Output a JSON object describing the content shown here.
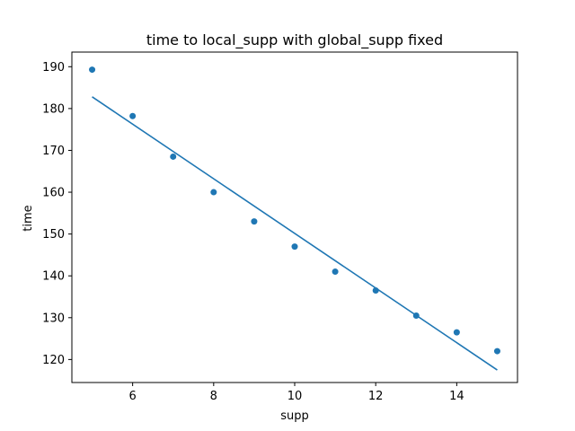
{
  "chart_data": {
    "type": "scatter",
    "title": "time to local_supp with global_supp fixed",
    "xlabel": "supp",
    "ylabel": "time",
    "xlim": [
      4.5,
      15.5
    ],
    "ylim": [
      114.5,
      193.5
    ],
    "xticks": [
      6,
      8,
      10,
      12,
      14
    ],
    "yticks": [
      120,
      130,
      140,
      150,
      160,
      170,
      180,
      190
    ],
    "grid": false,
    "colors": {
      "series": "#1f77b4"
    },
    "series": [
      {
        "kind": "scatter",
        "x": [
          5,
          6,
          7,
          8,
          9,
          10,
          11,
          12,
          13,
          14,
          15
        ],
        "y": [
          189.3,
          178.2,
          168.5,
          160.0,
          153.0,
          147.0,
          141.0,
          136.5,
          130.5,
          126.5,
          122.0
        ]
      },
      {
        "kind": "line",
        "x": [
          5,
          15
        ],
        "y": [
          182.8,
          117.5
        ]
      }
    ]
  }
}
